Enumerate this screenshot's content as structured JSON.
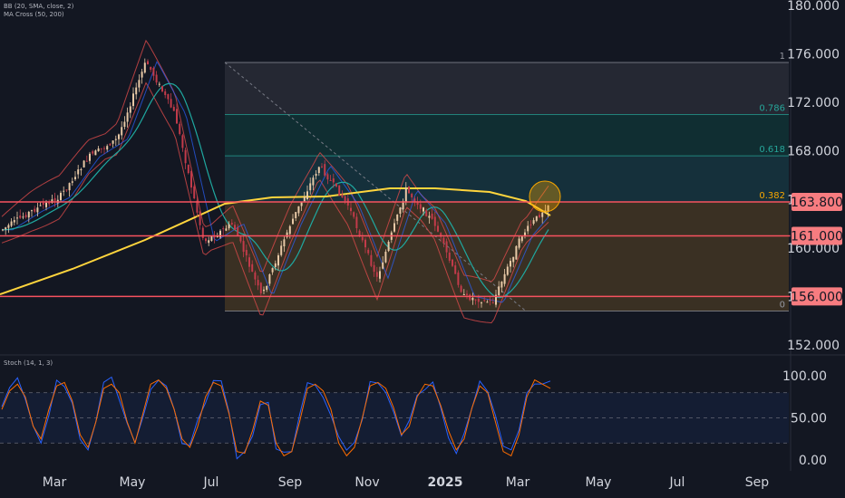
{
  "legends": {
    "bb": "BB (20, SMA, close, 2)",
    "ma": "MA Cross (50, 200)",
    "stoch": "Stoch (14, 1, 3)"
  },
  "colors": {
    "background": "#131722",
    "candle_up": "#e8c9a6",
    "candle_down": "#c23b4a",
    "resistance_lines": "#f7525f",
    "sma200": "#ffd53d",
    "sma50": "#1fa8a0",
    "bollinger": "#d94a4a",
    "bb_basis": "#2962ff",
    "fib_line": "#5b8ab0",
    "stoch_k": "#2962ff",
    "stoch_d": "#ff6d00",
    "tag_fill": "#f77c80"
  },
  "chart_data": [
    {
      "type": "candlestick",
      "title": "",
      "x_axis": [
        "Mar",
        "May",
        "Jul",
        "Sep",
        "Nov",
        "2025",
        "Mar",
        "May",
        "Jul",
        "Sep"
      ],
      "y_axis": [
        "180.000",
        "176.000",
        "172.000",
        "168.000",
        "164.000",
        "160.000",
        "156.000",
        "152.000"
      ],
      "y_range": [
        151,
        180.5
      ],
      "price_tags": [
        "163.800",
        "161.000",
        "156.000"
      ],
      "horizontal_levels": [
        163.8,
        161.0,
        156.0
      ],
      "fib_levels": [
        {
          "label": "1",
          "value": 175.3
        },
        {
          "label": "0.786",
          "value": 171.0
        },
        {
          "label": "0.618",
          "value": 167.6
        },
        {
          "label": "0.382",
          "value": 163.8
        },
        {
          "label": "0",
          "value": 154.8
        }
      ],
      "close_series": [
        {
          "date": "Feb",
          "value": 161.5
        },
        {
          "date": "Mar",
          "value": 163.0
        },
        {
          "date": "Apr",
          "value": 164.2
        },
        {
          "date": "May",
          "value": 167.5
        },
        {
          "date": "Jun",
          "value": 169.0
        },
        {
          "date": "Jul",
          "value": 175.4
        },
        {
          "date": "Jul",
          "value": 171.0
        },
        {
          "date": "Aug",
          "value": 160.5
        },
        {
          "date": "Aug",
          "value": 162.0
        },
        {
          "date": "Sep",
          "value": 156.0
        },
        {
          "date": "Oct",
          "value": 162.0
        },
        {
          "date": "Nov",
          "value": 166.8
        },
        {
          "date": "Nov",
          "value": 163.5
        },
        {
          "date": "Dec",
          "value": 157.5
        },
        {
          "date": "Dec",
          "value": 164.8
        },
        {
          "date": "2025",
          "value": 162.0
        },
        {
          "date": "Feb",
          "value": 156.0
        },
        {
          "date": "Feb",
          "value": 155.5
        },
        {
          "date": "Mar",
          "value": 161.0
        },
        {
          "date": "Mar",
          "value": 163.8
        }
      ]
    },
    {
      "type": "line",
      "title": "",
      "y_axis": [
        "100.00",
        "50.00",
        "0.00"
      ],
      "y_range": [
        -2,
        105
      ],
      "bands": [
        20,
        50,
        80
      ],
      "series": [
        {
          "name": "",
          "values": [
            60,
            82,
            90,
            75,
            40,
            25,
            60,
            88,
            92,
            70,
            30,
            15,
            45,
            85,
            90,
            80,
            45,
            20,
            55,
            90,
            95,
            85,
            60,
            25,
            15,
            40,
            75,
            92,
            88,
            55,
            10,
            8,
            35,
            70,
            65,
            20,
            5,
            10,
            45,
            85,
            90,
            82,
            60,
            20,
            5,
            15,
            50,
            88,
            92,
            85,
            62,
            30,
            40,
            75,
            90,
            88,
            65,
            35,
            12,
            25,
            62,
            88,
            80,
            45,
            10,
            5,
            30,
            75,
            95,
            90,
            85
          ]
        }
      ]
    }
  ]
}
